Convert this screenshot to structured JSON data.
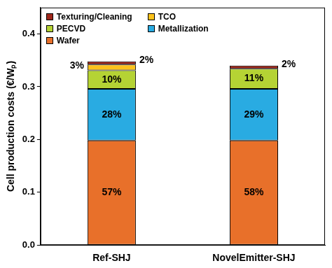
{
  "chart_data": {
    "type": "bar",
    "stacked": true,
    "y_label": "Cell production costs (€/Wₚ)",
    "categories": [
      "Ref-SHJ",
      "NovelEmitter-SHJ"
    ],
    "series": [
      {
        "name": "Wafer",
        "color": "#e8702a",
        "values": [
          0.198,
          0.198
        ],
        "share_labels": [
          "57%",
          "58%"
        ]
      },
      {
        "name": "Metallization",
        "color": "#29abe2",
        "values": [
          0.098,
          0.098
        ],
        "share_labels": [
          "28%",
          "29%"
        ]
      },
      {
        "name": "PECVD",
        "color": "#b5d334",
        "values": [
          0.035,
          0.038
        ],
        "share_labels": [
          "10%",
          "11%"
        ]
      },
      {
        "name": "TCO",
        "color": "#fcc21b",
        "values": [
          0.011,
          0
        ],
        "share_labels": [
          "3%",
          null
        ]
      },
      {
        "name": "Texturing/Cleaning",
        "color": "#a0281c",
        "values": [
          0.006,
          0.006
        ],
        "share_labels": [
          "2%",
          "2%"
        ]
      }
    ],
    "ylim": [
      0,
      0.45
    ],
    "yticks": [
      {
        "value": 0,
        "label": "0.0"
      },
      0.1,
      0.2,
      0.3,
      0.4
    ],
    "grid": false,
    "legend": "upper left"
  }
}
